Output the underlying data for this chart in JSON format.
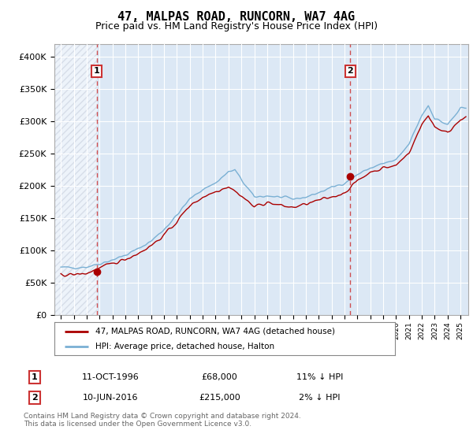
{
  "title": "47, MALPAS ROAD, RUNCORN, WA7 4AG",
  "subtitle": "Price paid vs. HM Land Registry's House Price Index (HPI)",
  "ylabel_ticks": [
    "£0",
    "£50K",
    "£100K",
    "£150K",
    "£200K",
    "£250K",
    "£300K",
    "£350K",
    "£400K"
  ],
  "ytick_values": [
    0,
    50000,
    100000,
    150000,
    200000,
    250000,
    300000,
    350000,
    400000
  ],
  "ylim": [
    0,
    420000
  ],
  "xlim_start": 1993.5,
  "xlim_end": 2025.6,
  "sale1_x": 1996.79,
  "sale1_y": 68000,
  "sale2_x": 2016.44,
  "sale2_y": 215000,
  "legend_red": "47, MALPAS ROAD, RUNCORN, WA7 4AG (detached house)",
  "legend_blue": "HPI: Average price, detached house, Halton",
  "table_row1": [
    "1",
    "11-OCT-1996",
    "£68,000",
    "11% ↓ HPI"
  ],
  "table_row2": [
    "2",
    "10-JUN-2016",
    "£215,000",
    "2% ↓ HPI"
  ],
  "footer": "Contains HM Land Registry data © Crown copyright and database right 2024.\nThis data is licensed under the Open Government Licence v3.0.",
  "color_red": "#aa0000",
  "color_blue": "#7ab0d4",
  "color_dashed": "#cc3333",
  "background_plot": "#dce8f5",
  "background_fig": "#ffffff",
  "grid_color": "#ffffff",
  "hatch_end_year": 1996.79
}
